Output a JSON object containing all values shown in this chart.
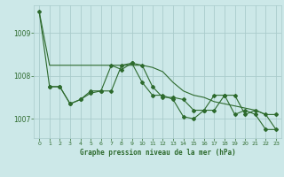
{
  "title": "Graphe pression niveau de la mer (hPa)",
  "bg_color": "#cce8e8",
  "grid_color": "#aacccc",
  "line_color": "#2d6a2d",
  "xlim": [
    -0.5,
    23.5
  ],
  "ylim": [
    1006.55,
    1009.65
  ],
  "yticks": [
    1007,
    1008,
    1009
  ],
  "xticks": [
    0,
    1,
    2,
    3,
    4,
    5,
    6,
    7,
    8,
    9,
    10,
    11,
    12,
    13,
    14,
    15,
    16,
    17,
    18,
    19,
    20,
    21,
    22,
    23
  ],
  "s1_x": [
    0,
    1,
    2,
    3,
    4,
    5,
    6,
    7,
    8,
    9,
    10,
    11,
    12,
    13,
    14,
    15,
    16,
    17,
    18,
    19,
    20,
    21,
    22,
    23
  ],
  "s1_y": [
    1009.5,
    1008.25,
    1008.25,
    1008.25,
    1008.25,
    1008.25,
    1008.25,
    1008.25,
    1008.25,
    1008.25,
    1008.25,
    1008.2,
    1008.1,
    1007.85,
    1007.65,
    1007.55,
    1007.5,
    1007.4,
    1007.35,
    1007.3,
    1007.25,
    1007.2,
    1007.1,
    1006.75
  ],
  "s2_x": [
    0,
    1,
    2,
    3,
    4,
    5,
    6,
    7,
    8,
    9,
    10,
    11,
    12,
    13,
    14,
    15,
    16,
    17,
    18,
    19,
    20,
    21,
    22,
    23
  ],
  "s2_y": [
    1009.5,
    1007.75,
    1007.75,
    1007.35,
    1007.45,
    1007.6,
    1007.65,
    1008.25,
    1008.15,
    1008.3,
    1007.85,
    1007.55,
    1007.55,
    1007.45,
    1007.05,
    1007.0,
    1007.2,
    1007.2,
    1007.55,
    1007.55,
    1007.1,
    1007.2,
    1007.1,
    1007.1
  ],
  "s3_x": [
    1,
    2,
    3,
    4,
    5,
    6,
    7,
    8,
    9,
    10,
    11,
    12,
    13,
    14,
    15,
    16,
    17,
    18,
    19,
    20,
    21,
    22,
    23
  ],
  "s3_y": [
    1007.75,
    1007.75,
    1007.35,
    1007.45,
    1007.65,
    1007.65,
    1007.65,
    1008.25,
    1008.3,
    1008.25,
    1007.75,
    1007.5,
    1007.5,
    1007.45,
    1007.2,
    1007.2,
    1007.55,
    1007.55,
    1007.1,
    1007.2,
    1007.1,
    1006.75,
    1006.75
  ]
}
